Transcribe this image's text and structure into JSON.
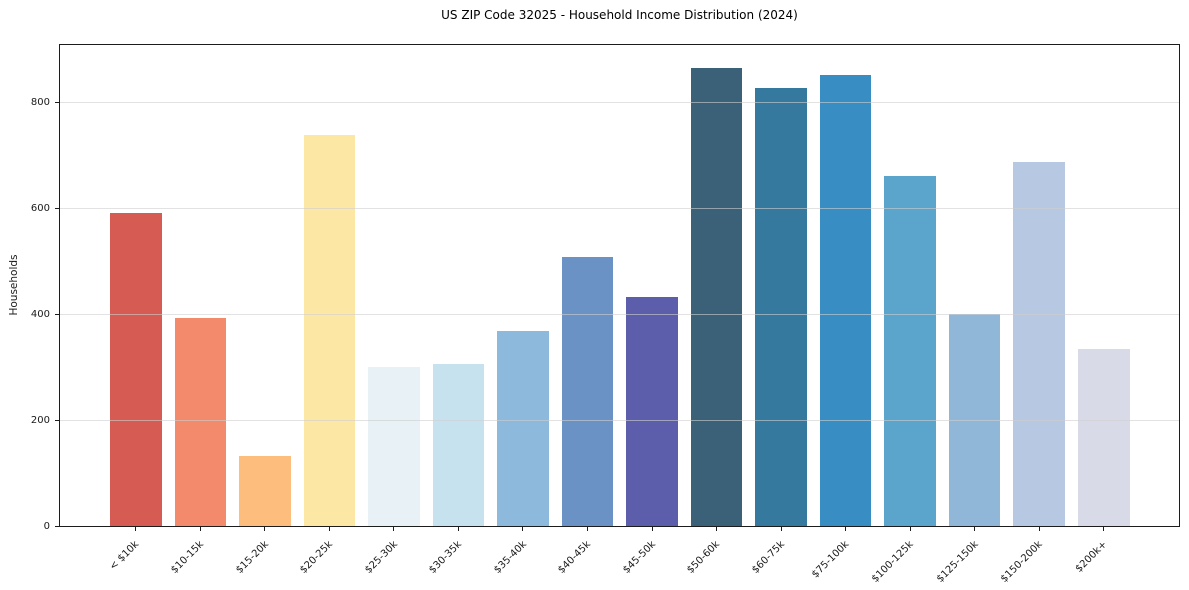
{
  "chart_data": {
    "type": "bar",
    "title": "US ZIP Code 32025 - Household Income Distribution (2024)",
    "xlabel": "",
    "ylabel": "Households",
    "categories": [
      "< $10k",
      "$10-15k",
      "$15-20k",
      "$20-25k",
      "$25-30k",
      "$30-35k",
      "$35-40k",
      "$40-45k",
      "$45-50k",
      "$50-60k",
      "$60-75k",
      "$75-100k",
      "$100-125k",
      "$125-150k",
      "$150-200k",
      "$200k+"
    ],
    "values": [
      591,
      394,
      132,
      739,
      301,
      307,
      369,
      509,
      432,
      865,
      827,
      853,
      661,
      401,
      687,
      335
    ],
    "bar_colors": [
      "#d65b52",
      "#f28a6b",
      "#fcbd7d",
      "#fce7a4",
      "#e7f1f6",
      "#c7e2ef",
      "#8db9dc",
      "#6b92c5",
      "#5c5dab",
      "#3a6177",
      "#35799e",
      "#388ec3",
      "#5ba4cc",
      "#90b6d8",
      "#b7c9e2",
      "#d9dae8"
    ],
    "yticks": [
      0,
      200,
      400,
      600,
      800
    ],
    "ylim": [
      0,
      909
    ],
    "grid": "horizontal-light",
    "legend": "none",
    "plot_background": "#ffffff"
  }
}
